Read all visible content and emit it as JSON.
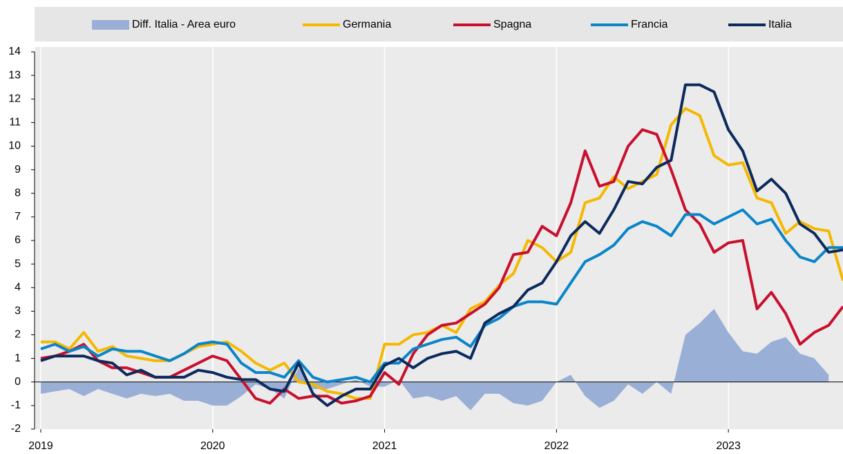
{
  "chart_data": {
    "type": "line",
    "categories": [
      "2019",
      null,
      null,
      null,
      null,
      null,
      null,
      null,
      null,
      null,
      null,
      null,
      "2020",
      null,
      null,
      null,
      null,
      null,
      null,
      null,
      null,
      null,
      null,
      null,
      "2021",
      null,
      null,
      null,
      null,
      null,
      null,
      null,
      null,
      null,
      null,
      null,
      "2022",
      null,
      null,
      null,
      null,
      null,
      null,
      null,
      null,
      null,
      null,
      null,
      "2023",
      null,
      null,
      null,
      null,
      null,
      null,
      null,
      null
    ],
    "series": [
      {
        "name": "Diff. Italia - Area euro",
        "kind": "area",
        "color": "#9aafd6",
        "values": [
          -0.5,
          -0.4,
          -0.3,
          -0.6,
          -0.3,
          -0.5,
          -0.7,
          -0.5,
          -0.6,
          -0.5,
          -0.8,
          -0.8,
          -1.0,
          -1.0,
          -0.6,
          -0.1,
          -0.3,
          -0.7,
          0.6,
          -0.3,
          -0.3,
          -0.1,
          0.1,
          -0.2,
          -0.2,
          0.1,
          -0.7,
          -0.6,
          -0.8,
          -0.6,
          -1.2,
          -0.5,
          -0.5,
          -0.9,
          -1.0,
          -0.8,
          0.0,
          0.3,
          -0.6,
          -1.1,
          -0.8,
          -0.1,
          -0.5,
          0.0,
          -0.5,
          2.0,
          2.5,
          3.1,
          2.1,
          1.3,
          1.2,
          1.7,
          1.9,
          1.2,
          1.0,
          0.3,
          null
        ]
      },
      {
        "name": "Germania",
        "color": "#f5b800",
        "values": [
          1.7,
          1.7,
          1.4,
          2.1,
          1.3,
          1.5,
          1.1,
          1.0,
          0.9,
          0.9,
          1.2,
          1.5,
          1.6,
          1.7,
          1.3,
          0.8,
          0.5,
          0.8,
          0.0,
          -0.1,
          -0.4,
          -0.5,
          -0.7,
          -0.7,
          1.6,
          1.6,
          2.0,
          2.1,
          2.4,
          2.1,
          3.1,
          3.4,
          4.1,
          4.6,
          6.0,
          5.7,
          5.1,
          5.5,
          7.6,
          7.8,
          8.7,
          8.2,
          8.5,
          8.8,
          10.9,
          11.6,
          11.3,
          9.6,
          9.2,
          9.3,
          7.8,
          7.6,
          6.3,
          6.8,
          6.5,
          6.4,
          4.3
        ]
      },
      {
        "name": "Spagna",
        "color": "#c8102e",
        "values": [
          1.0,
          1.1,
          1.3,
          1.6,
          0.9,
          0.6,
          0.6,
          0.4,
          0.2,
          0.2,
          0.5,
          0.8,
          1.1,
          0.9,
          0.1,
          -0.7,
          -0.9,
          -0.3,
          -0.7,
          -0.6,
          -0.6,
          -0.9,
          -0.8,
          -0.6,
          0.4,
          -0.1,
          1.2,
          2.0,
          2.4,
          2.5,
          2.9,
          3.3,
          4.0,
          5.4,
          5.5,
          6.6,
          6.2,
          7.6,
          9.8,
          8.3,
          8.5,
          10.0,
          10.7,
          10.5,
          9.0,
          7.3,
          6.7,
          5.5,
          5.9,
          6.0,
          3.1,
          3.8,
          2.9,
          1.6,
          2.1,
          2.4,
          3.2
        ]
      },
      {
        "name": "Francia",
        "color": "#0a85c8",
        "values": [
          1.4,
          1.6,
          1.3,
          1.5,
          1.1,
          1.4,
          1.3,
          1.3,
          1.1,
          0.9,
          1.2,
          1.6,
          1.7,
          1.6,
          0.8,
          0.4,
          0.4,
          0.2,
          0.9,
          0.2,
          0.0,
          0.1,
          0.2,
          0.0,
          0.8,
          0.8,
          1.4,
          1.6,
          1.8,
          1.9,
          1.5,
          2.4,
          2.7,
          3.2,
          3.4,
          3.4,
          3.3,
          4.2,
          5.1,
          5.4,
          5.8,
          6.5,
          6.8,
          6.6,
          6.2,
          7.1,
          7.1,
          6.7,
          7.0,
          7.3,
          6.7,
          6.9,
          6.0,
          5.3,
          5.1,
          5.7,
          5.7
        ]
      },
      {
        "name": "Italia",
        "color": "#0c2a5c",
        "values": [
          0.9,
          1.1,
          1.1,
          1.1,
          0.9,
          0.8,
          0.3,
          0.5,
          0.2,
          0.2,
          0.2,
          0.5,
          0.4,
          0.2,
          0.1,
          0.1,
          -0.3,
          -0.4,
          0.8,
          -0.5,
          -1.0,
          -0.6,
          -0.3,
          -0.3,
          0.7,
          1.0,
          0.6,
          1.0,
          1.2,
          1.3,
          1.0,
          2.5,
          2.9,
          3.2,
          3.9,
          4.2,
          5.1,
          6.2,
          6.8,
          6.3,
          7.3,
          8.5,
          8.4,
          9.1,
          9.4,
          12.6,
          12.6,
          12.3,
          10.7,
          9.8,
          8.1,
          8.6,
          8.0,
          6.7,
          6.3,
          5.5,
          5.6
        ]
      }
    ],
    "ylim": [
      -2,
      14
    ],
    "yticks": [
      -2,
      -1,
      0,
      1,
      2,
      3,
      4,
      5,
      6,
      7,
      8,
      9,
      10,
      11,
      12,
      13,
      14
    ],
    "grid": true,
    "legend": "top"
  }
}
